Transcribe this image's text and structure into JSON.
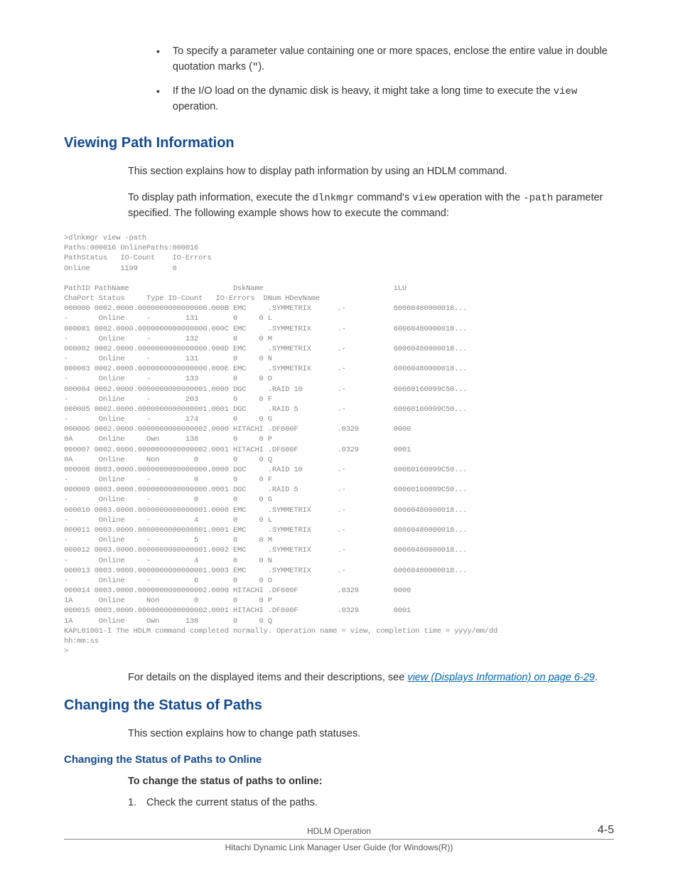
{
  "bullets": [
    {
      "pre": "To specify a parameter value containing one or more spaces, enclose the entire value in double quotation marks (",
      "mono": "\"",
      "post": ")."
    },
    {
      "pre": "If the I/O load on the dynamic disk is heavy, it might take a long time to execute the ",
      "mono": "view",
      "post": " operation."
    }
  ],
  "section1": {
    "title": "Viewing Path Information",
    "para1": "This section explains how to display path information by using an HDLM command.",
    "para2_pre": "To display path information, execute the ",
    "para2_m1": "dlnkmgr",
    "para2_mid": " command's ",
    "para2_m2": "view",
    "para2_mid2": " operation with the ",
    "para2_m3": "-path",
    "para2_post": " parameter specified. The following example shows how to execute the command:"
  },
  "codeblock": ">dlnkmgr view -path\nPaths:000016 OnlinePaths:000016\nPathStatus   IO-Count    IO-Errors\nOnline       1199        0\n\nPathID PathName                        DskName                              iLU\nChaPort Status     Type IO-Count   IO-Errors  DNum HDevName\n000000 0002.0000.0000000000000000.000B EMC     .SYMMETRIX      .-           60060480000018...\n-       Online     -        131        0     0 L\n000001 0002.0000.0000000000000000.000C EMC     .SYMMETRIX      .-           60060480000018...\n-       Online     -        132        0     0 M\n000002 0002.0000.0000000000000000.000D EMC     .SYMMETRIX      .-           60060480000018...\n-       Online     -        131        0     0 N\n000003 0002.0000.0000000000000000.000E EMC     .SYMMETRIX      .-           60060480000018...\n-       Online     -        133        0     0 O\n000004 0002.0000.0000000000000001.0000 DGC     .RAID 10        .-           60060160099C50...\n-       Online     -        203        0     0 F\n000005 0002.0000.0000000000000001.0001 DGC     .RAID 5         .-           60060160099C50...\n-       Online     -        174        0     0 G\n000006 0002.0000.0000000000000002.0000 HITACHI .DF600F         .0329        0000\n0A      Online     Own      138        0     0 P\n000007 0002.0000.0000000000000002.0001 HITACHI .DF600F         .0329        0001\n0A      Online     Non        0        0     0 Q\n000008 0003.0000.0000000000000000.0000 DGC     .RAID 10        .-           60060160099C50...\n-       Online     -          0        0     0 F\n000009 0003.0000.0000000000000000.0001 DGC     .RAID 5         .-           60060160099C50...\n-       Online     -          0        0     0 G\n000010 0003.0000.0000000000000001.0000 EMC     .SYMMETRIX      .-           60060480000018...\n-       Online     -          4        0     0 L\n000011 0003.0000.0000000000000001.0001 EMC     .SYMMETRIX      .-           60060480000018...\n-       Online     -          5        0     0 M\n000012 0003.0000.0000000000000001.0002 EMC     .SYMMETRIX      .-           60060480000018...\n-       Online     -          4        0     0 N\n000013 0003.0000.0000000000000001.0003 EMC     .SYMMETRIX      .-           60060480000018...\n-       Online     -          6        0     0 O\n000014 0003.0000.0000000000000002.0000 HITACHI .DF600F         .0329        0000\n1A      Online     Non        0        0     0 P\n000015 0003.0000.0000000000000002.0001 HITACHI .DF600F         .0329        0001\n1A      Online     Own      138        0     0 Q\nKAPL01001-I The HDLM command completed normally. Operation name = view, completion time = yyyy/mm/dd\nhh:mm:ss\n>",
  "para_after_code_pre": "For details on the displayed items and their descriptions, see ",
  "link_text": "view (Displays Information) on page 6-29",
  "para_after_code_post": ".",
  "section2": {
    "title": "Changing the Status of Paths",
    "para": "This section explains how to change path statuses."
  },
  "section3": {
    "title": "Changing the Status of Paths to Online",
    "bold_intro": "To change the status of paths to online:",
    "step1_num": "1",
    "step1_text": "Check the current status of the paths."
  },
  "footer": {
    "line1": "HDLM Operation",
    "line2": "Hitachi Dynamic Link Manager User Guide (for Windows(R))",
    "pagenum": "4-5"
  }
}
